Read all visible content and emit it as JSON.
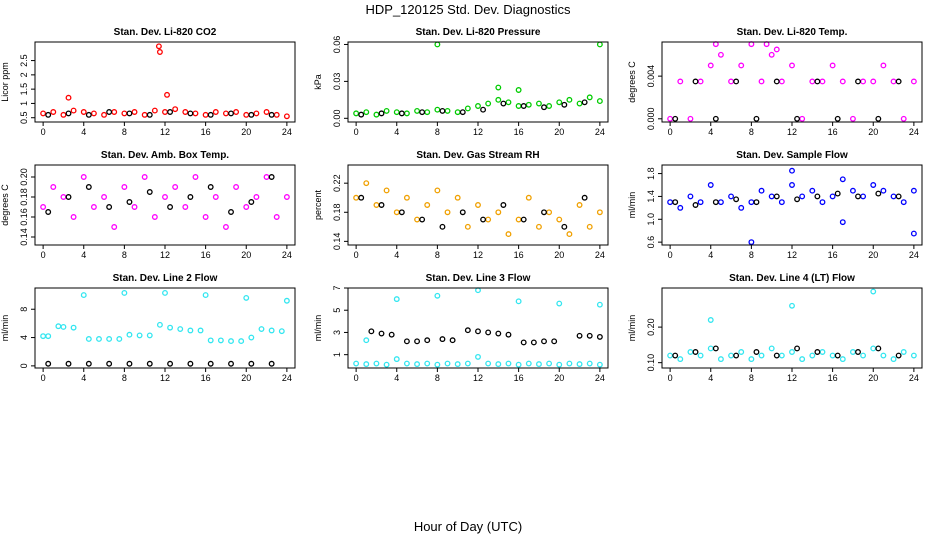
{
  "title": "HDP_120125  Std. Dev. Diagnostics",
  "xlabel": "Hour of Day (UTC)",
  "chart_data": [
    {
      "type": "scatter",
      "title": "Stan. Dev. Li-820 CO2",
      "ylabel": "Licor ppm",
      "xlim": [
        -0.8,
        24.8
      ],
      "xticks": [
        0,
        4,
        8,
        12,
        16,
        20,
        24
      ],
      "ylim": [
        0.35,
        3.15
      ],
      "yticks": [
        0.5,
        1,
        1.5,
        2,
        2.5
      ],
      "series": [
        {
          "color": "#ff0000",
          "x": [
            0,
            1,
            2,
            3,
            4,
            5,
            6,
            7,
            8,
            9,
            10,
            11,
            12,
            13,
            14,
            15,
            16,
            17,
            18,
            19,
            20,
            21,
            22,
            23,
            24,
            2.5,
            11.4,
            11.5,
            12.2
          ],
          "values": [
            0.65,
            0.7,
            0.6,
            0.75,
            0.7,
            0.65,
            0.6,
            0.7,
            0.65,
            0.7,
            0.6,
            0.75,
            0.7,
            0.8,
            0.7,
            0.65,
            0.6,
            0.7,
            0.65,
            0.7,
            0.6,
            0.65,
            0.7,
            0.6,
            0.55,
            1.2,
            3.0,
            2.8,
            1.3
          ]
        },
        {
          "color": "#000000",
          "x": [
            0.5,
            2.5,
            4.5,
            6.5,
            8.5,
            10.5,
            12.5,
            14.5,
            16.5,
            18.5,
            20.5,
            22.5
          ],
          "values": [
            0.6,
            0.65,
            0.6,
            0.7,
            0.65,
            0.6,
            0.7,
            0.65,
            0.6,
            0.65,
            0.6,
            0.6
          ]
        }
      ]
    },
    {
      "type": "scatter",
      "title": "Stan. Dev. Li-820 Pressure",
      "ylabel": "kPa",
      "xlim": [
        -0.8,
        24.8
      ],
      "xticks": [
        0,
        4,
        8,
        12,
        16,
        20,
        24
      ],
      "ylim": [
        -0.003,
        0.062
      ],
      "yticks": [
        {
          "value": 0,
          "label": "0.00"
        },
        0.03,
        0.06
      ],
      "series": [
        {
          "color": "#00cc00",
          "x": [
            0,
            1,
            2,
            3,
            4,
            5,
            6,
            7,
            8,
            9,
            10,
            11,
            12,
            13,
            14,
            15,
            16,
            17,
            18,
            19,
            20,
            21,
            22,
            23,
            24,
            8,
            14,
            16,
            24
          ],
          "values": [
            0.004,
            0.005,
            0.003,
            0.006,
            0.005,
            0.004,
            0.006,
            0.005,
            0.007,
            0.006,
            0.005,
            0.008,
            0.01,
            0.012,
            0.015,
            0.013,
            0.01,
            0.011,
            0.012,
            0.01,
            0.013,
            0.015,
            0.012,
            0.017,
            0.014,
            0.06,
            0.025,
            0.023,
            0.06
          ]
        },
        {
          "color": "#000000",
          "x": [
            0.5,
            2.5,
            4.5,
            6.5,
            8.5,
            10.5,
            12.5,
            14.5,
            16.5,
            18.5,
            20.5,
            22.5
          ],
          "values": [
            0.003,
            0.004,
            0.004,
            0.005,
            0.006,
            0.005,
            0.007,
            0.012,
            0.01,
            0.009,
            0.011,
            0.013
          ]
        }
      ]
    },
    {
      "type": "scatter",
      "title": "Stan. Dev. Li-820 Temp.",
      "ylabel": "degrees C",
      "xlim": [
        -0.8,
        24.8
      ],
      "xticks": [
        0,
        4,
        8,
        12,
        16,
        20,
        24
      ],
      "ylim": [
        -0.0003,
        0.0072
      ],
      "yticks": [
        {
          "value": 0,
          "label": "0.000"
        },
        0.004
      ],
      "series": [
        {
          "color": "#ff00ff",
          "x": [
            0,
            1,
            2,
            3,
            4,
            5,
            6,
            7,
            8,
            9,
            10,
            11,
            12,
            13,
            14,
            15,
            16,
            17,
            18,
            19,
            20,
            21,
            22,
            23,
            24,
            4.5,
            9.5,
            10.5
          ],
          "values": [
            0,
            0.0035,
            0,
            0.0035,
            0.005,
            0.006,
            0.0035,
            0.005,
            0.007,
            0.0035,
            0.006,
            0.0035,
            0.005,
            0,
            0.0035,
            0.0035,
            0.005,
            0.0035,
            0,
            0.0035,
            0.0035,
            0.005,
            0.0035,
            0,
            0.0035,
            0.007,
            0.007,
            0.0065
          ]
        },
        {
          "color": "#000000",
          "x": [
            0.5,
            2.5,
            4.5,
            6.5,
            8.5,
            10.5,
            12.5,
            14.5,
            16.5,
            18.5,
            20.5,
            22.5
          ],
          "values": [
            0,
            0.0035,
            0,
            0.0035,
            0,
            0.0035,
            0,
            0.0035,
            0,
            0.0035,
            0,
            0.0035
          ]
        }
      ]
    },
    {
      "type": "scatter",
      "title": "Stan. Dev. Amb. Box Temp.",
      "ylabel": "degrees C",
      "xlim": [
        -0.8,
        24.8
      ],
      "xticks": [
        0,
        4,
        8,
        12,
        16,
        20,
        24
      ],
      "ylim": [
        0.132,
        0.212
      ],
      "yticks": [
        0.14,
        0.16,
        0.18,
        {
          "value": 0.2,
          "label": "0.20"
        }
      ],
      "series": [
        {
          "color": "#ff00ff",
          "x": [
            0,
            1,
            2,
            3,
            4,
            5,
            6,
            7,
            8,
            9,
            10,
            11,
            12,
            13,
            14,
            15,
            16,
            17,
            18,
            19,
            20,
            21,
            22,
            23,
            24
          ],
          "values": [
            0.17,
            0.19,
            0.18,
            0.16,
            0.2,
            0.17,
            0.18,
            0.15,
            0.19,
            0.17,
            0.2,
            0.16,
            0.18,
            0.19,
            0.17,
            0.2,
            0.16,
            0.18,
            0.15,
            0.19,
            0.17,
            0.18,
            0.2,
            0.16,
            0.18
          ]
        },
        {
          "color": "#000000",
          "x": [
            0.5,
            2.5,
            4.5,
            6.5,
            8.5,
            10.5,
            12.5,
            14.5,
            16.5,
            18.5,
            20.5,
            22.5
          ],
          "values": [
            0.165,
            0.18,
            0.19,
            0.17,
            0.175,
            0.185,
            0.17,
            0.18,
            0.19,
            0.165,
            0.175,
            0.2
          ]
        }
      ]
    },
    {
      "type": "scatter",
      "title": "Stan. Dev. Gas Stream RH",
      "ylabel": "percent",
      "xlim": [
        -0.8,
        24.8
      ],
      "xticks": [
        0,
        4,
        8,
        12,
        16,
        20,
        24
      ],
      "ylim": [
        0.135,
        0.245
      ],
      "yticks": [
        0.14,
        0.18,
        0.22
      ],
      "series": [
        {
          "color": "#f0a000",
          "x": [
            0,
            1,
            2,
            3,
            4,
            5,
            6,
            7,
            8,
            9,
            10,
            11,
            12,
            13,
            14,
            15,
            16,
            17,
            18,
            19,
            20,
            21,
            22,
            23,
            24
          ],
          "values": [
            0.2,
            0.22,
            0.19,
            0.21,
            0.18,
            0.2,
            0.17,
            0.19,
            0.21,
            0.18,
            0.2,
            0.16,
            0.19,
            0.17,
            0.18,
            0.15,
            0.17,
            0.2,
            0.16,
            0.18,
            0.17,
            0.15,
            0.19,
            0.16,
            0.18
          ]
        },
        {
          "color": "#000000",
          "x": [
            0.5,
            2.5,
            4.5,
            6.5,
            8.5,
            10.5,
            12.5,
            14.5,
            16.5,
            18.5,
            20.5,
            22.5
          ],
          "values": [
            0.2,
            0.19,
            0.18,
            0.17,
            0.16,
            0.18,
            0.17,
            0.19,
            0.17,
            0.18,
            0.16,
            0.2
          ]
        }
      ]
    },
    {
      "type": "scatter",
      "title": "Stan. Dev. Sample Flow",
      "ylabel": "ml/min",
      "xlim": [
        -0.8,
        24.8
      ],
      "xticks": [
        0,
        4,
        8,
        12,
        16,
        20,
        24
      ],
      "ylim": [
        0.55,
        1.95
      ],
      "yticks": [
        0.6,
        {
          "value": 1,
          "label": "1.0"
        },
        1.4,
        1.8
      ],
      "series": [
        {
          "color": "#0000ff",
          "x": [
            0,
            1,
            2,
            3,
            4,
            5,
            6,
            7,
            8,
            9,
            10,
            11,
            12,
            13,
            14,
            15,
            16,
            17,
            18,
            19,
            20,
            21,
            22,
            23,
            24,
            8,
            12,
            17,
            24
          ],
          "values": [
            1.3,
            1.2,
            1.4,
            1.3,
            1.6,
            1.3,
            1.4,
            1.2,
            1.3,
            1.5,
            1.4,
            1.3,
            1.6,
            1.4,
            1.5,
            1.3,
            1.4,
            1.7,
            1.5,
            1.4,
            1.6,
            1.5,
            1.4,
            1.3,
            1.5,
            0.6,
            1.85,
            0.95,
            0.75
          ]
        },
        {
          "color": "#000000",
          "x": [
            0.5,
            2.5,
            4.5,
            6.5,
            8.5,
            10.5,
            12.5,
            14.5,
            16.5,
            18.5,
            20.5,
            22.5
          ],
          "values": [
            1.3,
            1.25,
            1.3,
            1.35,
            1.3,
            1.4,
            1.35,
            1.4,
            1.45,
            1.4,
            1.45,
            1.4
          ]
        }
      ]
    },
    {
      "type": "scatter",
      "title": "Stan. Dev. Line 2 Flow",
      "ylabel": "ml/min",
      "xlim": [
        -0.8,
        24.8
      ],
      "xticks": [
        0,
        4,
        8,
        12,
        16,
        20,
        24
      ],
      "ylim": [
        -0.3,
        11
      ],
      "yticks": [
        0,
        4,
        8
      ],
      "series": [
        {
          "color": "#33e6f0",
          "x": [
            0,
            0.5,
            1.5,
            2,
            3,
            4.5,
            5.5,
            6.5,
            7.5,
            8.5,
            9.5,
            10.5,
            11.5,
            12.5,
            13.5,
            14.5,
            15.5,
            16.5,
            17.5,
            18.5,
            19.5,
            20.5,
            21.5,
            22.5,
            23.5,
            4,
            8,
            12,
            16,
            20,
            24
          ],
          "values": [
            4.2,
            4.2,
            5.6,
            5.5,
            5.4,
            3.8,
            3.8,
            3.8,
            3.8,
            4.4,
            4.3,
            4.3,
            5.8,
            5.4,
            5.2,
            5.0,
            5.0,
            3.6,
            3.6,
            3.5,
            3.5,
            4.0,
            5.2,
            5.0,
            4.9,
            10,
            10.3,
            10.3,
            10,
            9.6,
            9.2
          ]
        },
        {
          "color": "#000000",
          "x": [
            0.5,
            2.5,
            4.5,
            6.5,
            8.5,
            10.5,
            12.5,
            14.5,
            16.5,
            18.5,
            20.5,
            22.5
          ],
          "values": [
            0.3,
            0.3,
            0.3,
            0.3,
            0.3,
            0.3,
            0.3,
            0.3,
            0.3,
            0.3,
            0.3,
            0.3
          ]
        }
      ]
    },
    {
      "type": "scatter",
      "title": "Stan. Dev. Line 3 Flow",
      "ylabel": "ml/min",
      "xlim": [
        -0.8,
        24.8
      ],
      "xticks": [
        0,
        4,
        8,
        12,
        16,
        20,
        24
      ],
      "ylim": [
        -0.2,
        7
      ],
      "yticks": [
        1,
        3,
        5,
        7
      ],
      "series": [
        {
          "color": "#33e6f0",
          "x": [
            0,
            1,
            2,
            3,
            4,
            5,
            6,
            7,
            8,
            9,
            10,
            11,
            12,
            13,
            14,
            15,
            16,
            17,
            18,
            19,
            20,
            21,
            22,
            23,
            24,
            1,
            4,
            8,
            12,
            16,
            20,
            24
          ],
          "values": [
            0.2,
            0.15,
            0.2,
            0.1,
            0.6,
            0.2,
            0.15,
            0.2,
            0.1,
            0.2,
            0.15,
            0.2,
            0.8,
            0.2,
            0.15,
            0.2,
            0.1,
            0.2,
            0.15,
            0.2,
            0.1,
            0.2,
            0.15,
            0.2,
            0.1,
            2.3,
            6,
            6.3,
            6.8,
            5.8,
            5.6,
            5.5
          ]
        },
        {
          "color": "#000000",
          "x": [
            1.5,
            2.5,
            3.5,
            5,
            6,
            7,
            8.5,
            9.5,
            11,
            12,
            13,
            14,
            15,
            16.5,
            17.5,
            18.5,
            19.5,
            22,
            23,
            24
          ],
          "values": [
            3.1,
            2.9,
            2.8,
            2.2,
            2.2,
            2.3,
            2.4,
            2.3,
            3.2,
            3.1,
            3.0,
            2.9,
            2.8,
            2.1,
            2.1,
            2.2,
            2.2,
            2.7,
            2.7,
            2.6
          ]
        }
      ]
    },
    {
      "type": "scatter",
      "title": "Stan. Dev. Line 4 (LT) Flow",
      "ylabel": "ml/min",
      "xlim": [
        -0.8,
        24.8
      ],
      "xticks": [
        0,
        4,
        8,
        12,
        16,
        20,
        24
      ],
      "ylim": [
        0.085,
        0.31
      ],
      "yticks": [
        {
          "value": 0.1,
          "label": "0.10"
        },
        {
          "value": 0.2,
          "label": "0.20"
        }
      ],
      "series": [
        {
          "color": "#33e6f0",
          "x": [
            0,
            1,
            2,
            3,
            4,
            5,
            6,
            7,
            8,
            9,
            10,
            11,
            12,
            13,
            14,
            15,
            16,
            17,
            18,
            19,
            20,
            21,
            22,
            23,
            24,
            4,
            12,
            20
          ],
          "values": [
            0.12,
            0.11,
            0.13,
            0.12,
            0.14,
            0.11,
            0.12,
            0.13,
            0.11,
            0.12,
            0.14,
            0.12,
            0.13,
            0.11,
            0.12,
            0.13,
            0.12,
            0.11,
            0.13,
            0.12,
            0.14,
            0.12,
            0.11,
            0.13,
            0.12,
            0.22,
            0.26,
            0.3
          ]
        },
        {
          "color": "#000000",
          "x": [
            0.5,
            2.5,
            4.5,
            6.5,
            8.5,
            10.5,
            12.5,
            14.5,
            16.5,
            18.5,
            20.5,
            22.5
          ],
          "values": [
            0.12,
            0.13,
            0.14,
            0.12,
            0.13,
            0.12,
            0.14,
            0.13,
            0.12,
            0.13,
            0.14,
            0.12
          ]
        }
      ]
    }
  ]
}
